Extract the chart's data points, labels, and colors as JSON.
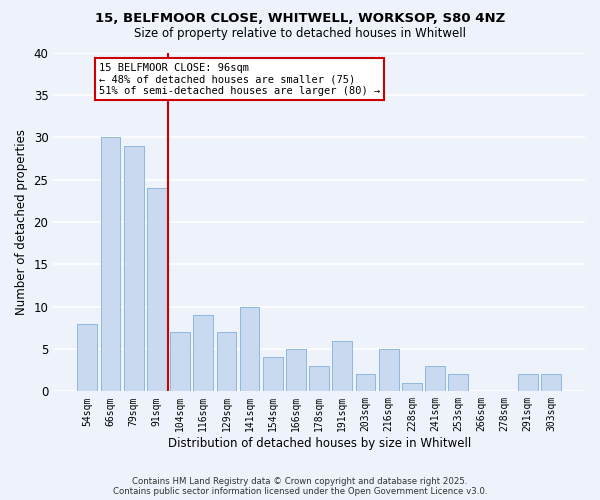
{
  "title": "15, BELFMOOR CLOSE, WHITWELL, WORKSOP, S80 4NZ",
  "subtitle": "Size of property relative to detached houses in Whitwell",
  "xlabel": "Distribution of detached houses by size in Whitwell",
  "ylabel": "Number of detached properties",
  "categories": [
    "54sqm",
    "66sqm",
    "79sqm",
    "91sqm",
    "104sqm",
    "116sqm",
    "129sqm",
    "141sqm",
    "154sqm",
    "166sqm",
    "178sqm",
    "191sqm",
    "203sqm",
    "216sqm",
    "228sqm",
    "241sqm",
    "253sqm",
    "266sqm",
    "278sqm",
    "291sqm",
    "303sqm"
  ],
  "values": [
    8,
    30,
    29,
    24,
    7,
    9,
    7,
    10,
    4,
    5,
    3,
    6,
    2,
    5,
    1,
    3,
    2,
    0,
    0,
    2,
    2
  ],
  "bar_color": "#c9d9f0",
  "bar_edge_color": "#8fb8e0",
  "vline_index": 3.5,
  "vline_color": "#cc0000",
  "ylim": [
    0,
    40
  ],
  "yticks": [
    0,
    5,
    10,
    15,
    20,
    25,
    30,
    35,
    40
  ],
  "annotation_title": "15 BELFMOOR CLOSE: 96sqm",
  "annotation_line1": "← 48% of detached houses are smaller (75)",
  "annotation_line2": "51% of semi-detached houses are larger (80) →",
  "annotation_box_color": "#ffffff",
  "annotation_box_edge": "#cc0000",
  "bg_color": "#eef2fa",
  "grid_color": "#ffffff",
  "footer1": "Contains HM Land Registry data © Crown copyright and database right 2025.",
  "footer2": "Contains public sector information licensed under the Open Government Licence v3.0."
}
